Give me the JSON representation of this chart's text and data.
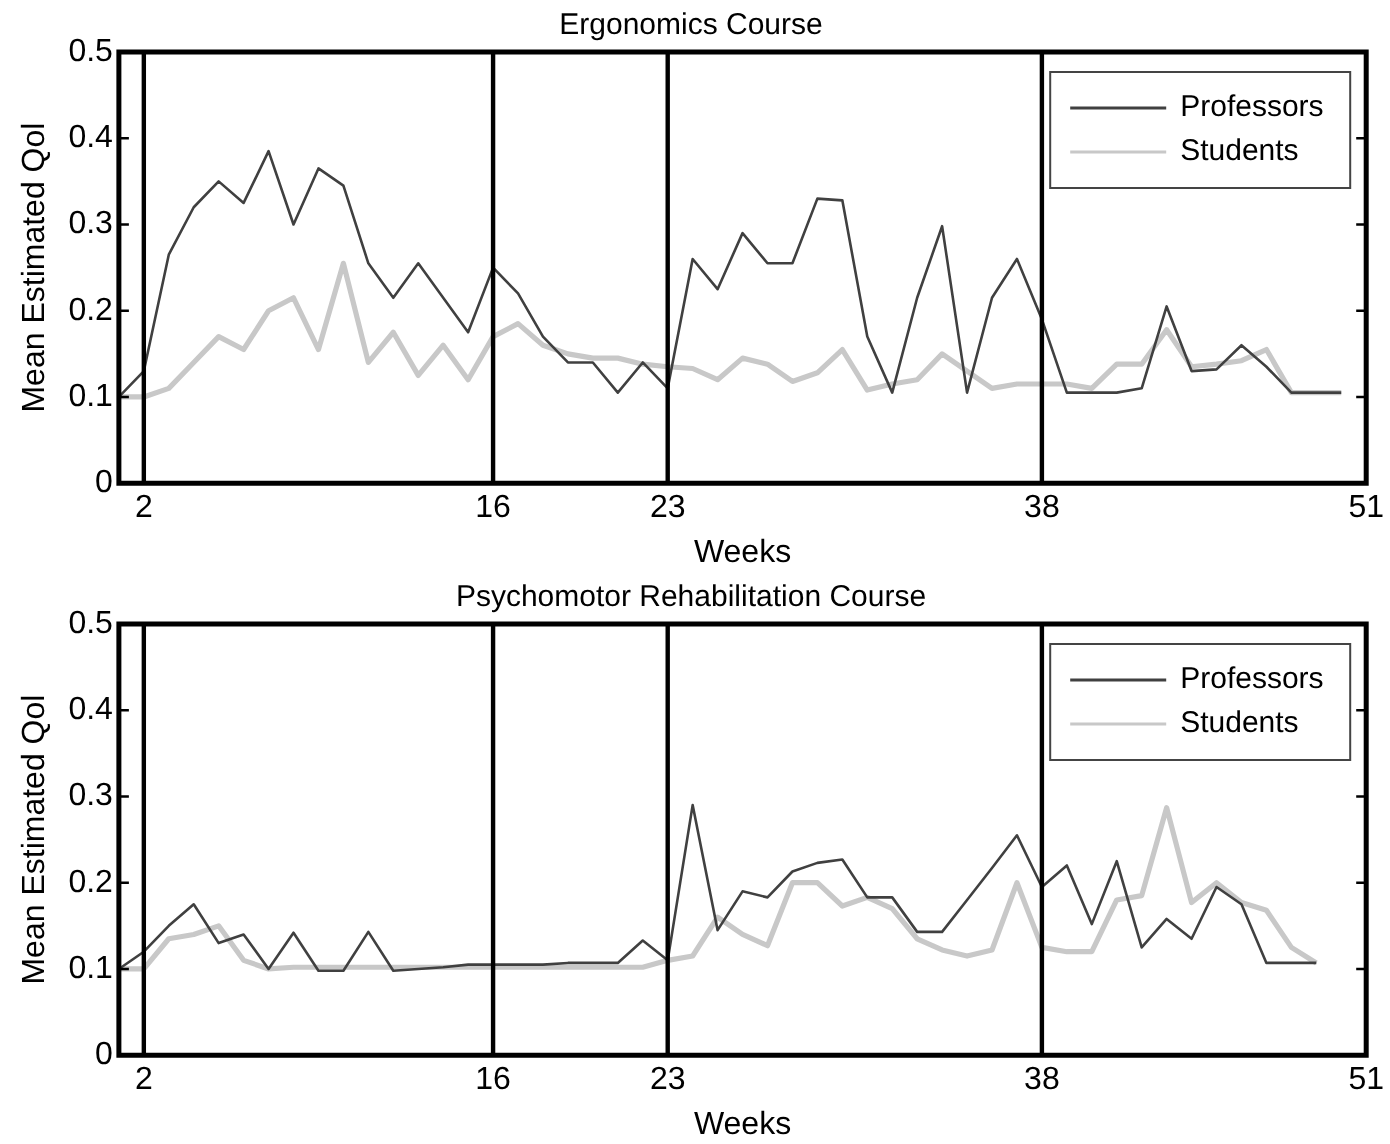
{
  "chart_data": [
    {
      "type": "line",
      "title": "Ergonomics Course",
      "xlabel": "Weeks",
      "ylabel": "Mean Estimated Qol",
      "x": [
        1,
        2,
        3,
        4,
        5,
        6,
        7,
        8,
        9,
        10,
        11,
        12,
        13,
        14,
        15,
        16,
        17,
        18,
        19,
        20,
        21,
        22,
        23,
        24,
        25,
        26,
        27,
        28,
        29,
        30,
        31,
        32,
        33,
        34,
        35,
        36,
        37,
        38,
        39,
        40,
        41,
        42,
        43,
        44,
        45,
        46,
        47,
        48,
        49,
        50
      ],
      "xlim": [
        1,
        51
      ],
      "xticks": [
        2,
        16,
        23,
        38,
        51
      ],
      "ylim": [
        0,
        0.5
      ],
      "yticks": [
        0,
        0.1,
        0.2,
        0.3,
        0.4,
        0.5
      ],
      "grid": false,
      "legend": "top right",
      "marker": "none",
      "ref_lines": [
        {
          "axis": "x",
          "value": 2,
          "color": "#000000"
        },
        {
          "axis": "x",
          "value": 16,
          "color": "#000000"
        },
        {
          "axis": "x",
          "value": 23,
          "color": "#000000"
        },
        {
          "axis": "x",
          "value": 38,
          "color": "#000000"
        }
      ],
      "series": [
        {
          "name": "Professors",
          "color": "#404040",
          "values": [
            0.1,
            0.13,
            0.265,
            0.32,
            0.35,
            0.325,
            0.385,
            0.3,
            0.365,
            0.345,
            0.255,
            0.215,
            0.255,
            0.215,
            0.175,
            0.25,
            0.22,
            0.17,
            0.14,
            0.14,
            0.105,
            0.14,
            0.11,
            0.26,
            0.225,
            0.29,
            0.255,
            0.255,
            0.33,
            0.328,
            0.17,
            0.105,
            0.215,
            0.298,
            0.105,
            0.215,
            0.26,
            0.19,
            0.105,
            0.105,
            0.105,
            0.11,
            0.205,
            0.13,
            0.132,
            0.16,
            0.135,
            0.105,
            0.105,
            0.105
          ]
        },
        {
          "name": "Students",
          "color": "#c8c8c8",
          "values": [
            0.1,
            0.1,
            0.11,
            0.14,
            0.17,
            0.155,
            0.2,
            0.215,
            0.155,
            0.255,
            0.14,
            0.175,
            0.125,
            0.16,
            0.12,
            0.17,
            0.185,
            0.16,
            0.15,
            0.145,
            0.145,
            0.138,
            0.135,
            0.133,
            0.12,
            0.145,
            0.138,
            0.118,
            0.128,
            0.155,
            0.108,
            0.115,
            0.12,
            0.15,
            0.13,
            0.11,
            0.115,
            0.115,
            0.115,
            0.11,
            0.138,
            0.138,
            0.178,
            0.135,
            0.138,
            0.142,
            0.155,
            0.105,
            0.105,
            0.105
          ]
        }
      ]
    },
    {
      "type": "line",
      "title": "Psychomotor Rehabilitation Course",
      "xlabel": "Weeks",
      "ylabel": "Mean Estimated Qol",
      "x": [
        1,
        2,
        3,
        4,
        5,
        6,
        7,
        8,
        9,
        10,
        11,
        12,
        13,
        14,
        15,
        16,
        17,
        18,
        19,
        20,
        21,
        22,
        23,
        24,
        25,
        26,
        27,
        28,
        29,
        30,
        31,
        32,
        33,
        34,
        35,
        36,
        37,
        38,
        39,
        40,
        41,
        42,
        43,
        44,
        45,
        46,
        47,
        48,
        49
      ],
      "xlim": [
        1,
        51
      ],
      "xticks": [
        2,
        16,
        23,
        38,
        51
      ],
      "ylim": [
        0,
        0.5
      ],
      "yticks": [
        0,
        0.1,
        0.2,
        0.3,
        0.4,
        0.5
      ],
      "grid": false,
      "legend": "top right",
      "marker": "none",
      "ref_lines": [
        {
          "axis": "x",
          "value": 2,
          "color": "#000000"
        },
        {
          "axis": "x",
          "value": 16,
          "color": "#000000"
        },
        {
          "axis": "x",
          "value": 23,
          "color": "#000000"
        },
        {
          "axis": "x",
          "value": 38,
          "color": "#000000"
        }
      ],
      "series": [
        {
          "name": "Professors",
          "color": "#404040",
          "values": [
            0.1,
            0.12,
            0.15,
            0.175,
            0.13,
            0.14,
            0.1,
            0.142,
            0.098,
            0.098,
            0.143,
            0.098,
            0.1,
            0.102,
            0.105,
            0.105,
            0.105,
            0.105,
            0.107,
            0.107,
            0.107,
            0.133,
            0.11,
            0.29,
            0.145,
            0.19,
            0.183,
            0.213,
            0.223,
            0.227,
            0.183,
            0.183,
            0.143,
            0.143,
            0.18,
            0.217,
            0.255,
            0.195,
            0.22,
            0.152,
            0.225,
            0.125,
            0.158,
            0.135,
            0.195,
            0.175,
            0.107,
            0.107,
            0.107
          ]
        },
        {
          "name": "Students",
          "color": "#c8c8c8",
          "values": [
            0.1,
            0.1,
            0.135,
            0.14,
            0.15,
            0.11,
            0.1,
            0.102,
            0.102,
            0.102,
            0.102,
            0.102,
            0.102,
            0.102,
            0.102,
            0.102,
            0.102,
            0.102,
            0.102,
            0.102,
            0.102,
            0.102,
            0.11,
            0.115,
            0.16,
            0.14,
            0.127,
            0.2,
            0.2,
            0.173,
            0.183,
            0.17,
            0.135,
            0.122,
            0.115,
            0.122,
            0.2,
            0.125,
            0.12,
            0.12,
            0.18,
            0.185,
            0.287,
            0.177,
            0.2,
            0.177,
            0.168,
            0.125,
            0.107
          ]
        }
      ]
    }
  ]
}
